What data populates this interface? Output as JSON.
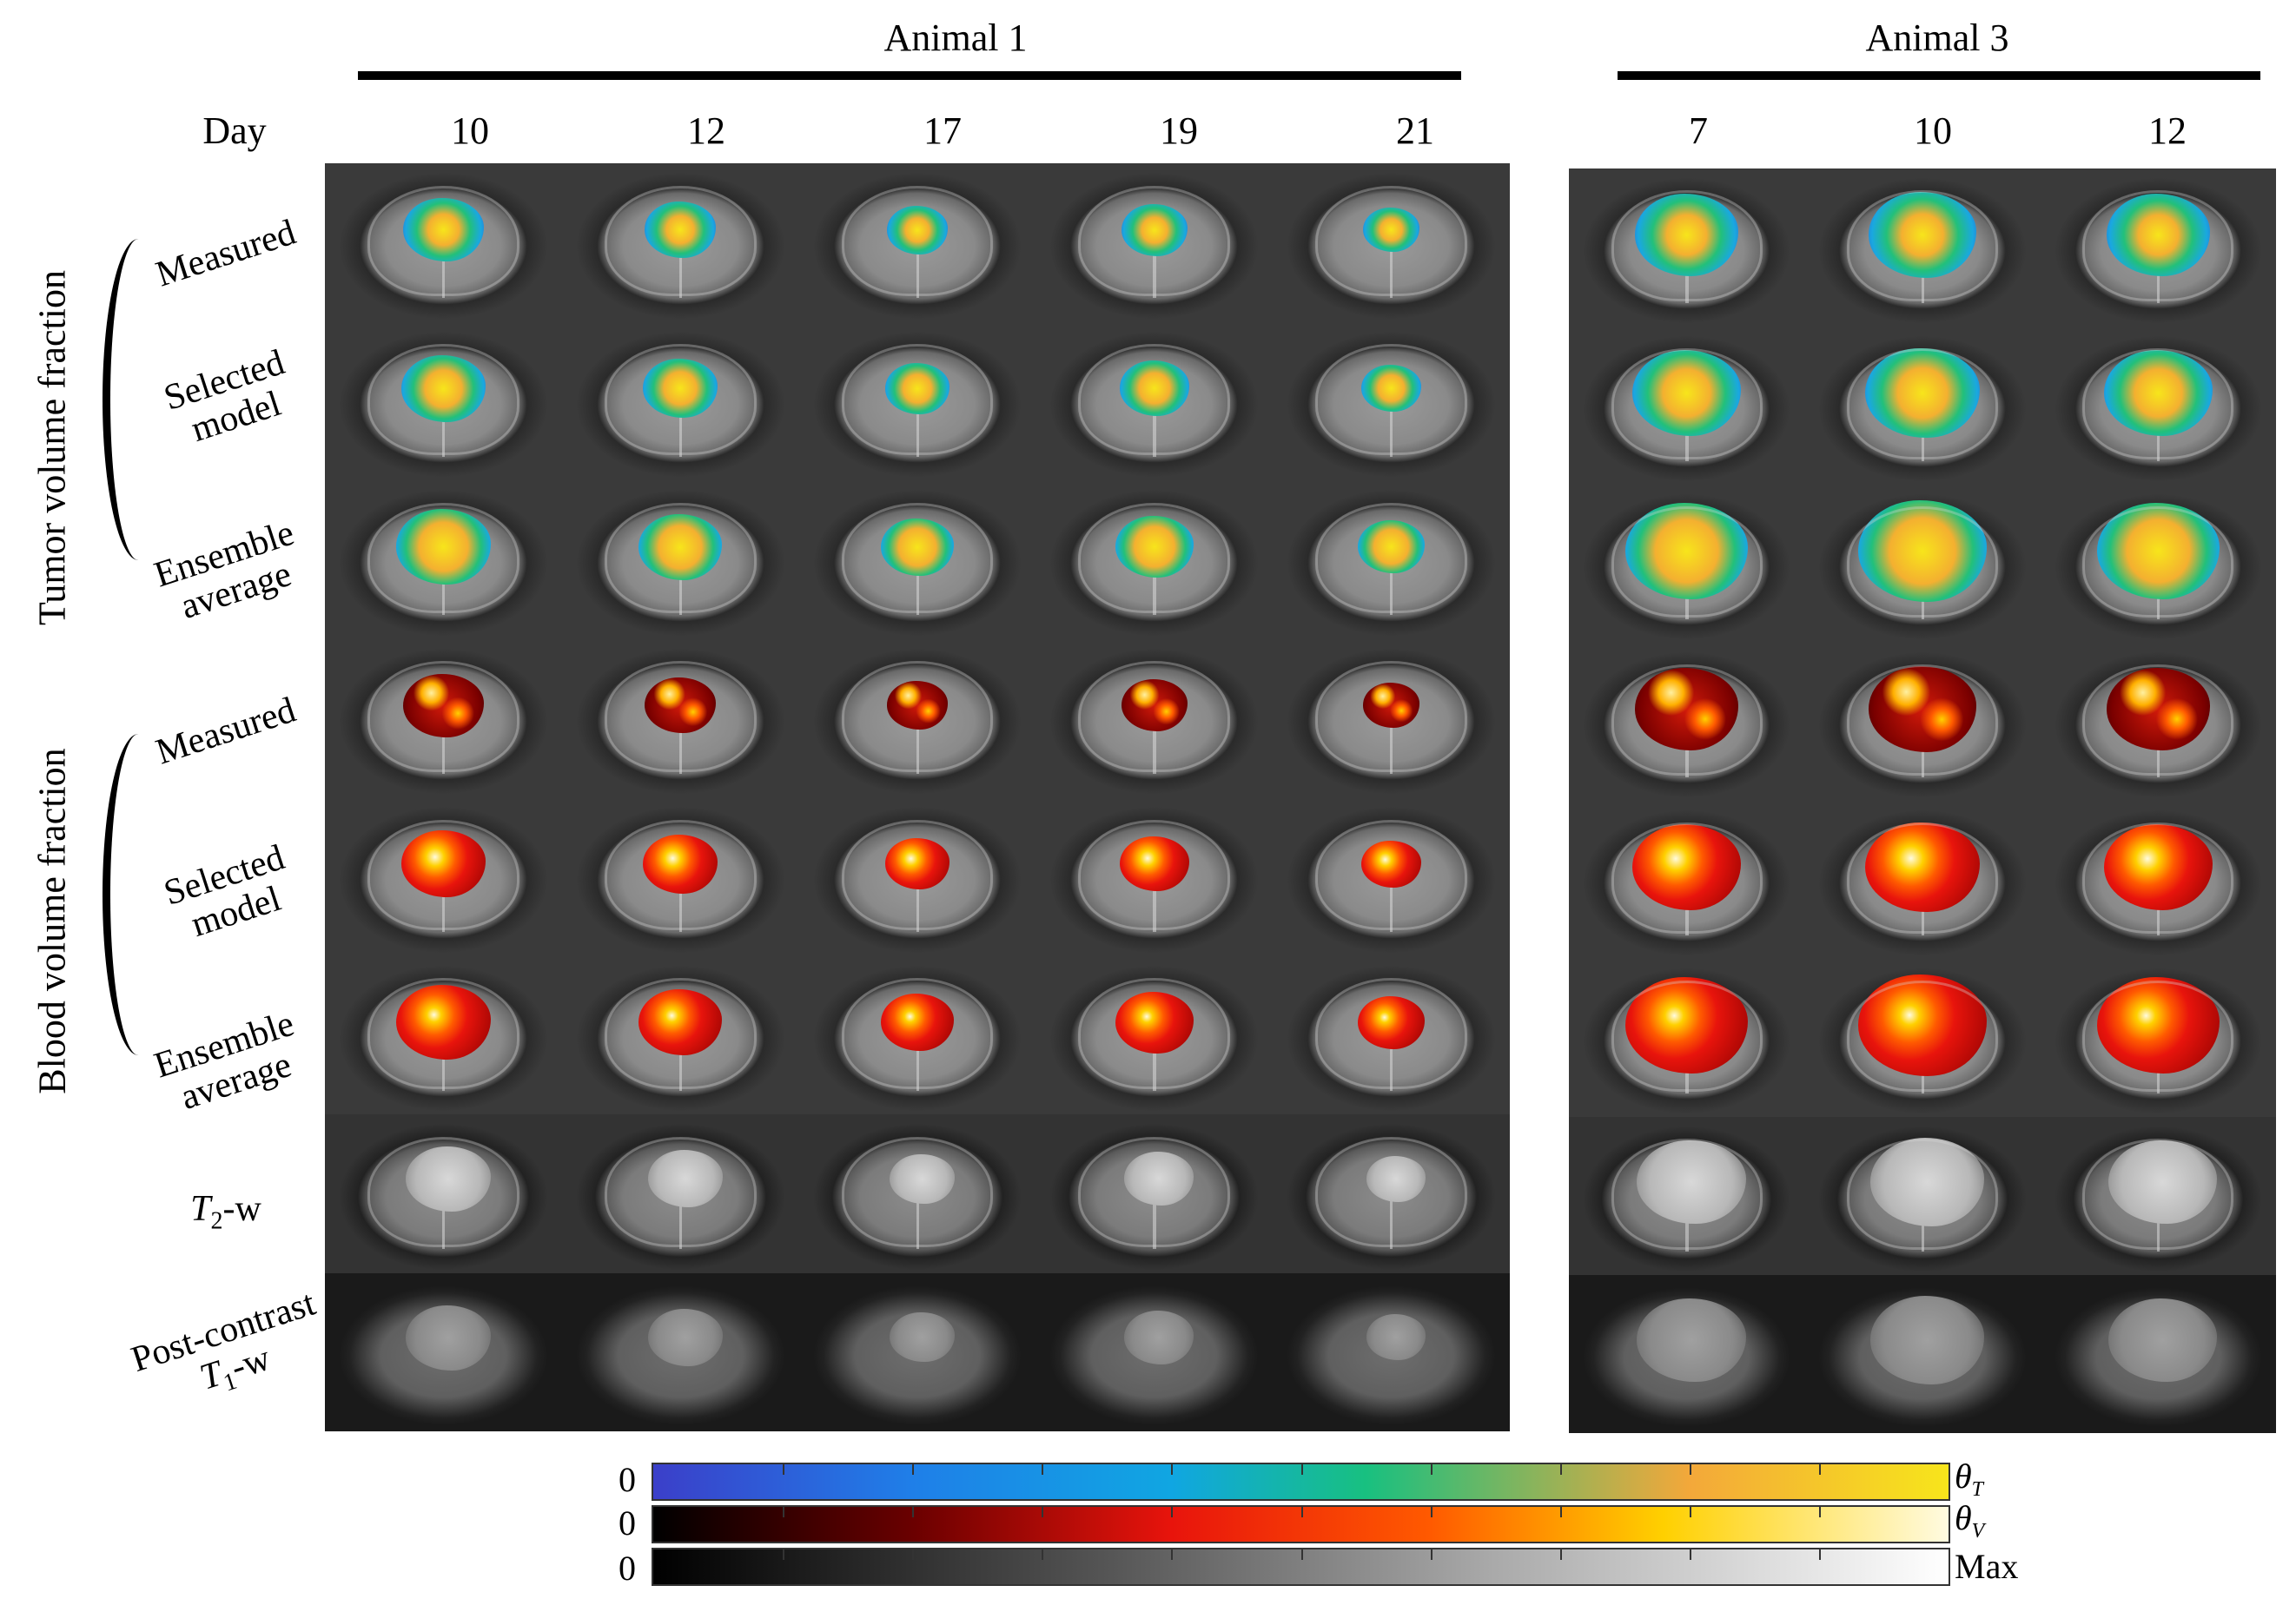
{
  "animal1": {
    "title": "Animal 1",
    "days": [
      "10",
      "12",
      "17",
      "19",
      "21"
    ]
  },
  "animal3": {
    "title": "Animal 3",
    "days": [
      "7",
      "10",
      "12"
    ]
  },
  "day_label": "Day",
  "groups": {
    "tumor": "Tumor volume fraction",
    "blood": "Blood volume fraction"
  },
  "rows": [
    {
      "label1": "Measured",
      "label2": ""
    },
    {
      "label1": "Selected",
      "label2": "model"
    },
    {
      "label1": "Ensemble",
      "label2": "average"
    },
    {
      "label1": "Measured",
      "label2": ""
    },
    {
      "label1": "Selected",
      "label2": "model"
    },
    {
      "label1": "Ensemble",
      "label2": "average"
    },
    {
      "label1": "T",
      "label2": "-w"
    },
    {
      "label1": "Post-contrast",
      "label2": "-w"
    }
  ],
  "t2_sub": "2",
  "t1_sub": "1",
  "t1_letter": "T",
  "colorbars": {
    "zero": "0",
    "theta_t": "θ",
    "theta_t_sub": "T",
    "theta_v": "θ",
    "theta_v_sub": "V",
    "max": "Max"
  },
  "colors": {
    "tumor_low": "#3b3fc9",
    "tumor_mid": "#1aa8e0",
    "tumor_green": "#22c07a",
    "tumor_high": "#f7e51b",
    "blood_low": "#000000",
    "blood_mid": "#e8140c",
    "blood_high": "#fffbe0"
  }
}
